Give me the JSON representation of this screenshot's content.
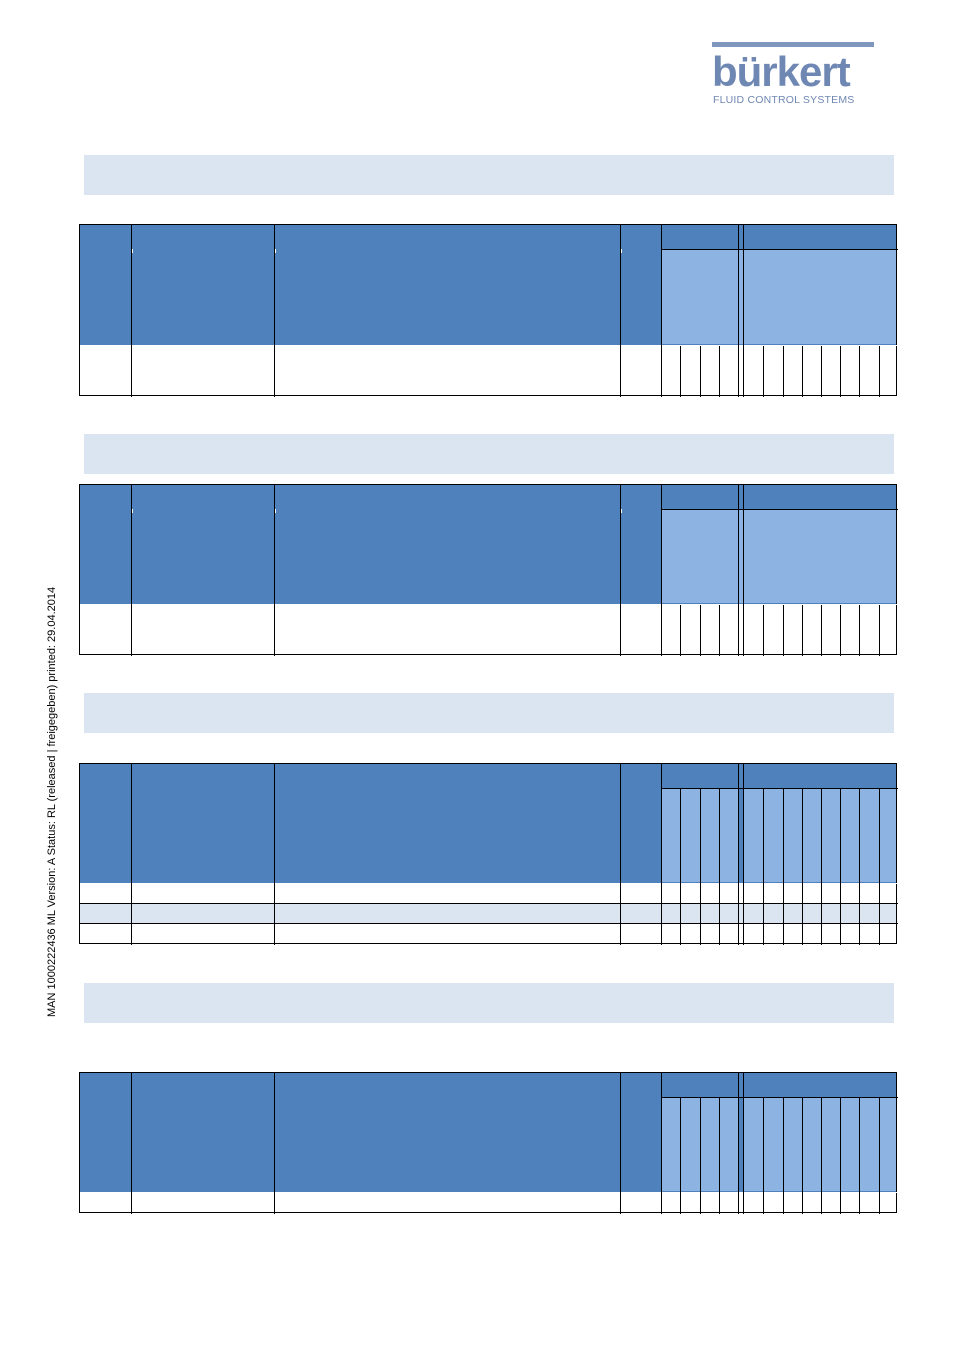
{
  "logo": {
    "brand": "bürkert",
    "tagline": "FLUID CONTROL SYSTEMS"
  },
  "side_text": "MAN  1000222436  ML  Version: A  Status: RL (released | freigegeben)  printed: 29.04.2014",
  "colors": {
    "header_blue": "#4f81bd",
    "sub_blue": "#8db3e2",
    "band_light": "#dbe5f1"
  }
}
